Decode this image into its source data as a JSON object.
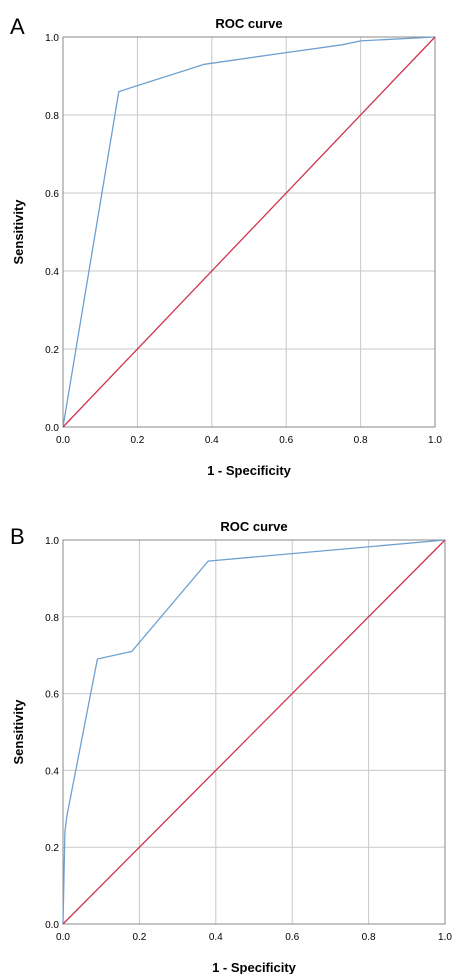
{
  "chart_data": [
    {
      "type": "line",
      "panel_label": "A",
      "title": "ROC curve",
      "xlabel": "1 - Specificity",
      "ylabel": "Sensitivity",
      "xlim": [
        0,
        1
      ],
      "ylim": [
        0,
        1
      ],
      "xticks": [
        "0.0",
        "0.2",
        "0.4",
        "0.6",
        "0.8",
        "1.0"
      ],
      "yticks": [
        "0.0",
        "0.2",
        "0.4",
        "0.6",
        "0.8",
        "1.0"
      ],
      "grid": true,
      "series": [
        {
          "color": "#6fa0d0",
          "x": [
            0,
            0.15,
            0.38,
            0.6,
            0.75,
            0.8,
            1.0
          ],
          "y": [
            0,
            0.86,
            0.93,
            0.96,
            0.98,
            0.99,
            1.0
          ]
        },
        {
          "color": "#d0334e",
          "x": [
            0,
            1.0
          ],
          "y": [
            0,
            1.0
          ]
        }
      ]
    },
    {
      "type": "line",
      "panel_label": "B",
      "title": "ROC curve",
      "xlabel": "1 - Specificity",
      "ylabel": "Sensitivity",
      "xlim": [
        0,
        1
      ],
      "ylim": [
        0,
        1
      ],
      "xticks": [
        "0.0",
        "0.2",
        "0.4",
        "0.6",
        "0.8",
        "1.0"
      ],
      "yticks": [
        "0.0",
        "0.2",
        "0.4",
        "0.6",
        "0.8",
        "1.0"
      ],
      "grid": true,
      "series": [
        {
          "color": "#6fa0d0",
          "x": [
            0,
            0.005,
            0.01,
            0.09,
            0.18,
            0.38,
            1.0
          ],
          "y": [
            0,
            0.24,
            0.28,
            0.69,
            0.71,
            0.945,
            1.0
          ]
        },
        {
          "color": "#d0334e",
          "x": [
            0,
            1.0
          ],
          "y": [
            0,
            1.0
          ]
        }
      ]
    }
  ]
}
